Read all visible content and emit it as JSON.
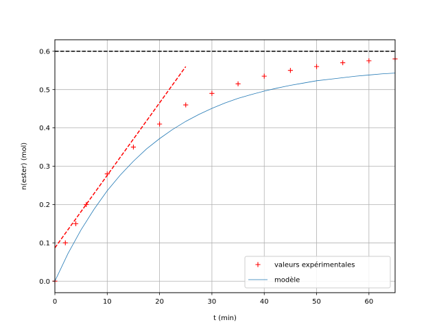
{
  "chart_data": {
    "type": "scatter",
    "title": "",
    "xlabel": "t (min)",
    "ylabel": "n(ester) (mol)",
    "xlim": [
      0,
      65
    ],
    "ylim": [
      -0.03,
      0.63
    ],
    "xticks": [
      0,
      10,
      20,
      30,
      40,
      50,
      60
    ],
    "yticks": [
      0.0,
      0.1,
      0.2,
      0.3,
      0.4,
      0.5,
      0.6
    ],
    "x_tick_labels": [
      "0",
      "10",
      "20",
      "30",
      "40",
      "50",
      "60"
    ],
    "y_tick_labels": [
      "0.0",
      "0.1",
      "0.2",
      "0.3",
      "0.4",
      "0.5",
      "0.6"
    ],
    "grid": true,
    "legend_position": "bottom-right",
    "series": [
      {
        "name": "valeurs expérimentales",
        "kind": "markers",
        "marker": "+",
        "color": "#ff0000",
        "points": [
          [
            0,
            0.0
          ],
          [
            2,
            0.1
          ],
          [
            4,
            0.15
          ],
          [
            6,
            0.2
          ],
          [
            10,
            0.28
          ],
          [
            15,
            0.35
          ],
          [
            20,
            0.41
          ],
          [
            25,
            0.46
          ],
          [
            30,
            0.49
          ],
          [
            35,
            0.515
          ],
          [
            40,
            0.535
          ],
          [
            45,
            0.55
          ],
          [
            50,
            0.56
          ],
          [
            55,
            0.57
          ],
          [
            60,
            0.575
          ],
          [
            65,
            0.58
          ]
        ]
      },
      {
        "name": "modèle",
        "kind": "line",
        "color": "#1f77b4",
        "points": [
          [
            0,
            0.0
          ],
          [
            2.5,
            0.072
          ],
          [
            5,
            0.134
          ],
          [
            7.5,
            0.188
          ],
          [
            10,
            0.236
          ],
          [
            12.5,
            0.277
          ],
          [
            15,
            0.313
          ],
          [
            17.5,
            0.345
          ],
          [
            20,
            0.372
          ],
          [
            22.5,
            0.396
          ],
          [
            25,
            0.417
          ],
          [
            27.5,
            0.435
          ],
          [
            30,
            0.451
          ],
          [
            32.5,
            0.465
          ],
          [
            35,
            0.477
          ],
          [
            37.5,
            0.487
          ],
          [
            40,
            0.496
          ],
          [
            42.5,
            0.504
          ],
          [
            45,
            0.511
          ],
          [
            47.5,
            0.517
          ],
          [
            50,
            0.523
          ],
          [
            52.5,
            0.527
          ],
          [
            55,
            0.531
          ],
          [
            57.5,
            0.535
          ],
          [
            60,
            0.538
          ],
          [
            62.5,
            0.541
          ],
          [
            65,
            0.543
          ]
        ]
      },
      {
        "kind": "dashed-line",
        "color": "#ff0000",
        "points": [
          [
            0,
            0.087
          ],
          [
            25,
            0.56
          ]
        ]
      },
      {
        "kind": "dashed-line",
        "color": "#000000",
        "points": [
          [
            0,
            0.6
          ],
          [
            65,
            0.6
          ]
        ]
      }
    ]
  }
}
